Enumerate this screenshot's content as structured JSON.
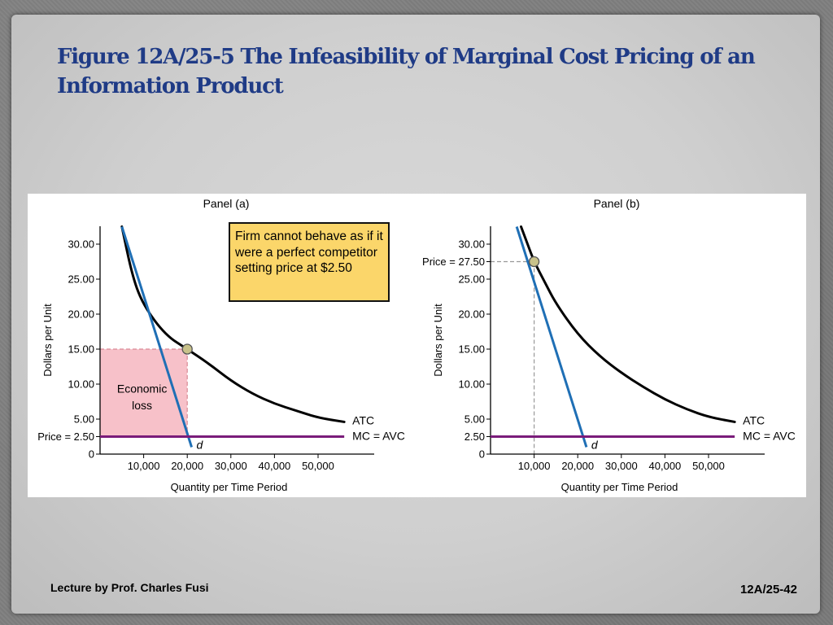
{
  "slide": {
    "title": "Figure 12A/25-5  The Infeasibility of Marginal Cost Pricing of an Information Product",
    "footer_left": "Lecture by Prof. Charles Fusi",
    "footer_right": "12A/25-42",
    "callout": "Firm cannot behave as if it were a perfect competitor setting price at $2.50"
  },
  "colors": {
    "atc": "#000000",
    "demand": "#1f6fb5",
    "mc_avc": "#7a1c7a",
    "loss_fill": "#f7c1c9",
    "title": "#1f3b86",
    "callout": "#fbd66a"
  },
  "chart_data": [
    {
      "type": "line",
      "panel_label": "Panel (a)",
      "xlabel": "Quantity per Time Period",
      "ylabel": "Dollars per Unit",
      "x_ticks": [
        10000,
        20000,
        30000,
        40000,
        50000
      ],
      "x_tick_labels": [
        "10,000",
        "20,000",
        "30,000",
        "40,000",
        "50,000"
      ],
      "y_ticks": [
        0,
        2.5,
        5,
        10,
        15,
        20,
        25,
        30
      ],
      "y_tick_labels": [
        "0",
        "Price = 2.50",
        "5.00",
        "10.00",
        "15.00",
        "20.00",
        "25.00",
        "30.00"
      ],
      "xlim": [
        0,
        60000
      ],
      "ylim": [
        0,
        32
      ],
      "series": [
        {
          "name": "ATC",
          "kind": "curve",
          "x": [
            5000,
            7500,
            10000,
            15000,
            20000,
            25000,
            30000,
            35000,
            40000,
            45000,
            50000,
            56000
          ],
          "y": [
            32.5,
            25.2,
            21.2,
            17,
            15,
            12.9,
            10.5,
            8.6,
            7.2,
            6.2,
            5.2,
            4.6
          ]
        },
        {
          "name": "d",
          "kind": "line",
          "x": [
            5000,
            21000
          ],
          "y": [
            32.5,
            1
          ]
        },
        {
          "name": "MC = AVC",
          "kind": "hline",
          "x": [
            0,
            56000
          ],
          "y": [
            2.5,
            2.5
          ]
        }
      ],
      "point": {
        "x": 20000,
        "y": 15
      },
      "region": {
        "label": "Economic loss",
        "x": [
          0,
          20000
        ],
        "y": [
          2.5,
          15
        ]
      }
    },
    {
      "type": "line",
      "panel_label": "Panel (b)",
      "xlabel": "Quantity per Time Period",
      "ylabel": "Dollars per Unit",
      "x_ticks": [
        10000,
        20000,
        30000,
        40000,
        50000
      ],
      "x_tick_labels": [
        "10,000",
        "20,000",
        "30,000",
        "40,000",
        "50,000"
      ],
      "y_ticks": [
        0,
        2.5,
        5,
        10,
        15,
        20,
        25,
        27.5,
        30
      ],
      "y_tick_labels": [
        "0",
        "2.50",
        "5.00",
        "10.00",
        "15.00",
        "20.00",
        "25.00",
        "Price = 27.50",
        "30.00"
      ],
      "xlim": [
        0,
        60000
      ],
      "ylim": [
        0,
        32
      ],
      "series": [
        {
          "name": "ATC",
          "kind": "curve",
          "x": [
            7000,
            8500,
            10000,
            12500,
            15000,
            20000,
            25000,
            30000,
            35000,
            40000,
            45000,
            50000,
            56000
          ],
          "y": [
            32.5,
            30,
            27.5,
            24.5,
            21.5,
            17.1,
            14,
            11.6,
            9.6,
            7.8,
            6.4,
            5.3,
            4.6
          ]
        },
        {
          "name": "d",
          "kind": "line",
          "x": [
            6000,
            22000
          ],
          "y": [
            32.5,
            1
          ]
        },
        {
          "name": "MC = AVC",
          "kind": "hline",
          "x": [
            0,
            56000
          ],
          "y": [
            2.5,
            2.5
          ]
        }
      ],
      "point": {
        "x": 10000,
        "y": 27.5
      },
      "guides": {
        "x": 10000,
        "y": 27.5
      }
    }
  ]
}
